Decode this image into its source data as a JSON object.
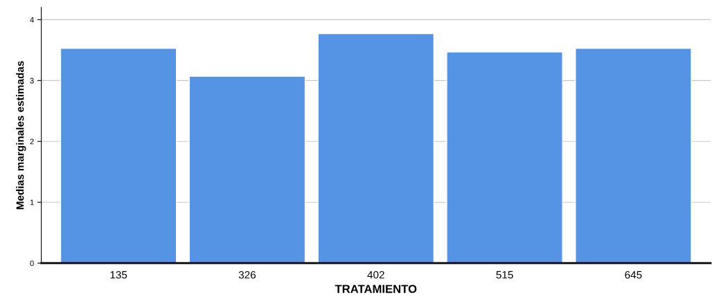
{
  "chart_data": {
    "type": "bar",
    "xlabel": "TRATAMIENTO",
    "ylabel": "Medias marginales estimadas",
    "categories": [
      "135",
      "326",
      "402",
      "515",
      "645"
    ],
    "values": [
      3.53,
      3.07,
      3.77,
      3.47,
      3.53
    ],
    "color": "#5594e4",
    "ylim": [
      0,
      4.2
    ],
    "yticks": [
      0,
      1,
      2,
      3,
      4
    ],
    "grid": "y",
    "legend": false
  }
}
